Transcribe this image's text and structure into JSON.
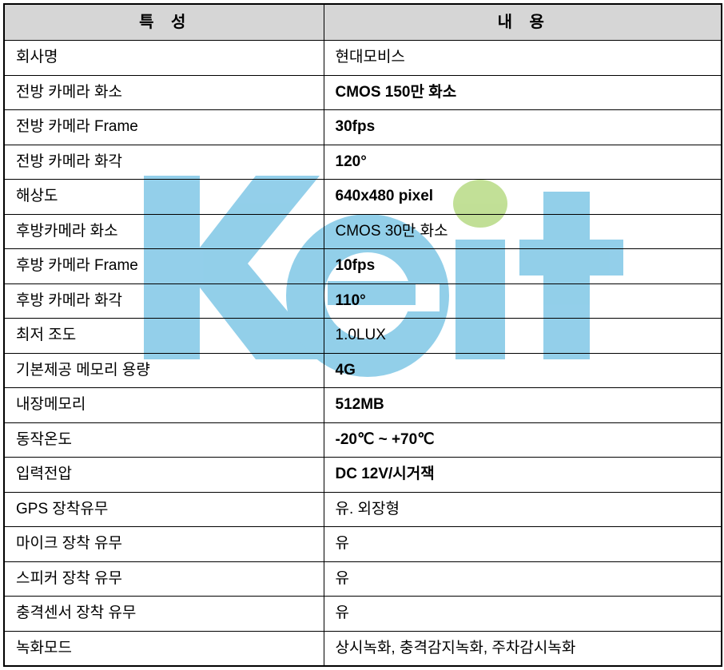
{
  "table": {
    "header_bg": "#d6d6d6",
    "border_color": "#000000",
    "columns": [
      "특 성",
      "내 용"
    ],
    "rows": [
      {
        "spec": "회사명",
        "value": "현대모비스",
        "bold": false
      },
      {
        "spec": "전방 카메라 화소",
        "value": "CMOS 150만 화소",
        "bold": true
      },
      {
        "spec": "전방 카메라 Frame",
        "value": "30fps",
        "bold": true
      },
      {
        "spec": "전방 카메라 화각",
        "value": "120°",
        "bold": true
      },
      {
        "spec": "해상도",
        "value": "640x480 pixel",
        "bold": true
      },
      {
        "spec": "후방카메라 화소",
        "value": "CMOS 30만 화소",
        "bold": false
      },
      {
        "spec": "후방 카메라 Frame",
        "value": "10fps",
        "bold": true
      },
      {
        "spec": "후방 카메라 화각",
        "value": "110°",
        "bold": true
      },
      {
        "spec": "최저 조도",
        "value": "1.0LUX",
        "bold": false
      },
      {
        "spec": "기본제공 메모리 용량",
        "value": "4G",
        "bold": true
      },
      {
        "spec": "내장메모리",
        "value": "512MB",
        "bold": true
      },
      {
        "spec": "동작온도",
        "value": "-20℃ ~ +70℃",
        "bold": true
      },
      {
        "spec": "입력전압",
        "value": "DC 12V/시거잭",
        "bold": true
      },
      {
        "spec": "GPS 장착유무",
        "value": "유. 외장형",
        "bold": false
      },
      {
        "spec": "마이크 장착 유무",
        "value": "유",
        "bold": false
      },
      {
        "spec": "스피커 장착 유무",
        "value": "유",
        "bold": false
      },
      {
        "spec": "충격센서 장착 유무",
        "value": "유",
        "bold": false
      },
      {
        "spec": "녹화모드",
        "value": "상시녹화, 충격감지녹화, 주차감시녹화",
        "bold": false
      }
    ]
  },
  "watermark": {
    "text": "Keit",
    "main_color": "#3aa8d8",
    "accent_color": "#8fc642",
    "opacity": 0.55
  }
}
